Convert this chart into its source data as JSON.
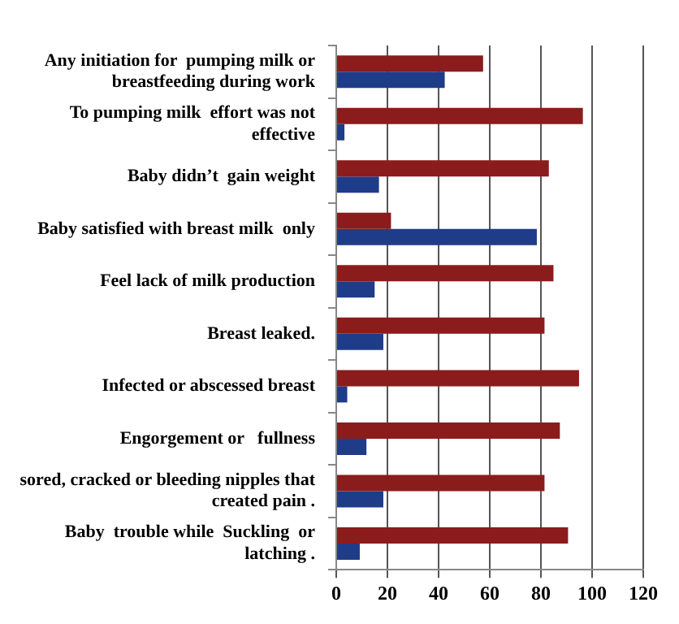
{
  "chart_data": {
    "type": "bar",
    "orientation": "horizontal",
    "categories": [
      "Any initiation for  pumping milk or breastfeeding during work",
      "To pumping milk  effort was not effective",
      "Baby didn’t  gain weight",
      "Baby satisfied with breast milk  only",
      "Feel lack of milk production",
      "Breast leaked.",
      "Infected or abscessed breast",
      "Engorgement or   fullness",
      "sored, cracked or bleeding nipples that created pain .",
      "Baby  trouble while  Suckling  or latching ."
    ],
    "series": [
      {
        "color": "#8b1c1c",
        "values": [
          57.4,
          96.4,
          83.1,
          21.4,
          84.9,
          81.4,
          94.9,
          87.4,
          81.4,
          90.6
        ]
      },
      {
        "color": "#1f3c88",
        "values": [
          42.4,
          3.2,
          16.7,
          78.4,
          15,
          18.4,
          4.3,
          11.8,
          18.4,
          9.2
        ]
      }
    ],
    "xlim": [
      0,
      120
    ],
    "xticks": [
      0,
      20,
      40,
      60,
      80,
      100,
      120
    ],
    "grid": "x",
    "legend": false
  }
}
